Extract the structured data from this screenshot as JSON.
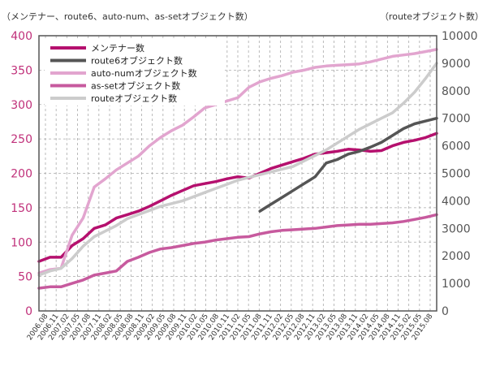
{
  "chart_data": {
    "type": "line",
    "left_axis_title": "（メンテナー、route6、auto-num、as-setオブジェクト数）",
    "right_axis_title": "（routeオブジェクト数）",
    "left_axis": {
      "ylim": [
        0,
        400
      ],
      "ticks": [
        "0",
        "50",
        "100",
        "150",
        "200",
        "250",
        "300",
        "350",
        "400"
      ]
    },
    "right_axis": {
      "ylim": [
        0,
        10000
      ],
      "ticks": [
        "0",
        "1000",
        "2000",
        "3000",
        "4000",
        "5000",
        "6000",
        "7000",
        "8000",
        "9000",
        "10000"
      ]
    },
    "grid": true,
    "legend_position": "top-left",
    "x_range": [
      "2006/08",
      "2015/08"
    ],
    "x_tick_labels": [
      "2006.08",
      "2006.11",
      "2007.02",
      "2007.05",
      "2007.08",
      "2007.11",
      "2008.02",
      "2008.05",
      "2008.08",
      "2008.11",
      "2009.02",
      "2009.05",
      "2009.08",
      "2009.11",
      "2010.02",
      "2010.05",
      "2010.08",
      "2010.11",
      "2011.02",
      "2011.05",
      "2011.08",
      "2011.11",
      "2012.02",
      "2012.05",
      "2012.08",
      "2012.11",
      "2013.02",
      "2013.05",
      "2013.08",
      "2013.11",
      "2014.02",
      "2014.05",
      "2014.08",
      "2014.11",
      "2015.02",
      "2015.05",
      "2015.08"
    ],
    "series": [
      {
        "name": "メンテナー数",
        "axis": "left",
        "color": "#b5106e",
        "points": [
          [
            "2006/08",
            72
          ],
          [
            "2006/11",
            78
          ],
          [
            "2007/02",
            78
          ],
          [
            "2007/05",
            95
          ],
          [
            "2007/08",
            105
          ],
          [
            "2007/11",
            120
          ],
          [
            "2008/02",
            125
          ],
          [
            "2008/05",
            135
          ],
          [
            "2008/08",
            140
          ],
          [
            "2008/11",
            145
          ],
          [
            "2009/02",
            152
          ],
          [
            "2009/05",
            160
          ],
          [
            "2009/08",
            168
          ],
          [
            "2009/11",
            175
          ],
          [
            "2010/02",
            182
          ],
          [
            "2010/05",
            185
          ],
          [
            "2010/08",
            188
          ],
          [
            "2010/11",
            192
          ],
          [
            "2011/02",
            195
          ],
          [
            "2011/05",
            193
          ],
          [
            "2011/08",
            200
          ],
          [
            "2011/11",
            207
          ],
          [
            "2012/02",
            212
          ],
          [
            "2012/05",
            217
          ],
          [
            "2012/08",
            222
          ],
          [
            "2012/11",
            228
          ],
          [
            "2013/02",
            230
          ],
          [
            "2013/05",
            232
          ],
          [
            "2013/08",
            235
          ],
          [
            "2013/11",
            234
          ],
          [
            "2014/02",
            232
          ],
          [
            "2014/05",
            233
          ],
          [
            "2014/08",
            240
          ],
          [
            "2014/11",
            245
          ],
          [
            "2015/02",
            248
          ],
          [
            "2015/05",
            252
          ],
          [
            "2015/08",
            258
          ]
        ]
      },
      {
        "name": "route6オブジェクト数",
        "axis": "left",
        "color": "#555555",
        "points": [
          [
            "2011/08",
            145
          ],
          [
            "2011/11",
            155
          ],
          [
            "2012/02",
            165
          ],
          [
            "2012/05",
            175
          ],
          [
            "2012/08",
            185
          ],
          [
            "2012/11",
            195
          ],
          [
            "2013/02",
            215
          ],
          [
            "2013/05",
            220
          ],
          [
            "2013/08",
            228
          ],
          [
            "2013/11",
            232
          ],
          [
            "2014/02",
            238
          ],
          [
            "2014/05",
            245
          ],
          [
            "2014/08",
            255
          ],
          [
            "2014/11",
            265
          ],
          [
            "2015/02",
            272
          ],
          [
            "2015/05",
            276
          ],
          [
            "2015/08",
            280
          ]
        ]
      },
      {
        "name": "auto-numオブジェクト数",
        "axis": "left",
        "color": "#e2a5cf",
        "points": [
          [
            "2006/08",
            55
          ],
          [
            "2006/11",
            60
          ],
          [
            "2007/02",
            62
          ],
          [
            "2007/05",
            110
          ],
          [
            "2007/08",
            135
          ],
          [
            "2007/11",
            180
          ],
          [
            "2008/02",
            192
          ],
          [
            "2008/05",
            205
          ],
          [
            "2008/08",
            215
          ],
          [
            "2008/11",
            225
          ],
          [
            "2009/02",
            240
          ],
          [
            "2009/05",
            252
          ],
          [
            "2009/08",
            262
          ],
          [
            "2009/11",
            270
          ],
          [
            "2010/02",
            282
          ],
          [
            "2010/05",
            295
          ],
          [
            "2010/08",
            300
          ],
          [
            "2010/11",
            305
          ],
          [
            "2011/02",
            310
          ],
          [
            "2011/05",
            325
          ],
          [
            "2011/08",
            333
          ],
          [
            "2011/11",
            338
          ],
          [
            "2012/02",
            342
          ],
          [
            "2012/05",
            347
          ],
          [
            "2012/08",
            350
          ],
          [
            "2012/11",
            354
          ],
          [
            "2013/02",
            356
          ],
          [
            "2013/05",
            357
          ],
          [
            "2013/08",
            358
          ],
          [
            "2013/11",
            359
          ],
          [
            "2014/02",
            362
          ],
          [
            "2014/05",
            366
          ],
          [
            "2014/08",
            370
          ],
          [
            "2014/11",
            372
          ],
          [
            "2015/02",
            374
          ],
          [
            "2015/05",
            377
          ],
          [
            "2015/08",
            380
          ]
        ]
      },
      {
        "name": "as-setオブジェクト数",
        "axis": "left",
        "color": "#c75a9e",
        "points": [
          [
            "2006/08",
            33
          ],
          [
            "2006/11",
            35
          ],
          [
            "2007/02",
            35
          ],
          [
            "2007/05",
            40
          ],
          [
            "2007/08",
            45
          ],
          [
            "2007/11",
            52
          ],
          [
            "2008/02",
            55
          ],
          [
            "2008/05",
            58
          ],
          [
            "2008/08",
            72
          ],
          [
            "2008/11",
            78
          ],
          [
            "2009/02",
            85
          ],
          [
            "2009/05",
            90
          ],
          [
            "2009/08",
            92
          ],
          [
            "2009/11",
            95
          ],
          [
            "2010/02",
            98
          ],
          [
            "2010/05",
            100
          ],
          [
            "2010/08",
            103
          ],
          [
            "2010/11",
            105
          ],
          [
            "2011/02",
            107
          ],
          [
            "2011/05",
            108
          ],
          [
            "2011/08",
            112
          ],
          [
            "2011/11",
            115
          ],
          [
            "2012/02",
            117
          ],
          [
            "2012/05",
            118
          ],
          [
            "2012/08",
            119
          ],
          [
            "2012/11",
            120
          ],
          [
            "2013/02",
            122
          ],
          [
            "2013/05",
            124
          ],
          [
            "2013/08",
            125
          ],
          [
            "2013/11",
            126
          ],
          [
            "2014/02",
            126
          ],
          [
            "2014/05",
            127
          ],
          [
            "2014/08",
            128
          ],
          [
            "2014/11",
            130
          ],
          [
            "2015/02",
            133
          ],
          [
            "2015/05",
            136
          ],
          [
            "2015/08",
            140
          ]
        ]
      },
      {
        "name": "routeオブジェクト数",
        "axis": "right",
        "color": "#cccccc",
        "points": [
          [
            "2006/08",
            1300
          ],
          [
            "2006/11",
            1450
          ],
          [
            "2007/02",
            1550
          ],
          [
            "2007/05",
            1900
          ],
          [
            "2007/08",
            2350
          ],
          [
            "2007/11",
            2700
          ],
          [
            "2008/02",
            2900
          ],
          [
            "2008/05",
            3100
          ],
          [
            "2008/08",
            3350
          ],
          [
            "2008/11",
            3500
          ],
          [
            "2009/02",
            3650
          ],
          [
            "2009/05",
            3800
          ],
          [
            "2009/08",
            3900
          ],
          [
            "2009/11",
            4000
          ],
          [
            "2010/02",
            4150
          ],
          [
            "2010/05",
            4300
          ],
          [
            "2010/08",
            4450
          ],
          [
            "2010/11",
            4600
          ],
          [
            "2011/02",
            4750
          ],
          [
            "2011/05",
            4850
          ],
          [
            "2011/08",
            4950
          ],
          [
            "2011/11",
            5050
          ],
          [
            "2012/02",
            5150
          ],
          [
            "2012/05",
            5250
          ],
          [
            "2012/08",
            5450
          ],
          [
            "2012/11",
            5650
          ],
          [
            "2013/02",
            5850
          ],
          [
            "2013/05",
            6100
          ],
          [
            "2013/08",
            6350
          ],
          [
            "2013/11",
            6600
          ],
          [
            "2014/02",
            6800
          ],
          [
            "2014/05",
            7000
          ],
          [
            "2014/08",
            7200
          ],
          [
            "2014/11",
            7550
          ],
          [
            "2015/02",
            7950
          ],
          [
            "2015/05",
            8450
          ],
          [
            "2015/08",
            9000
          ]
        ]
      }
    ]
  }
}
